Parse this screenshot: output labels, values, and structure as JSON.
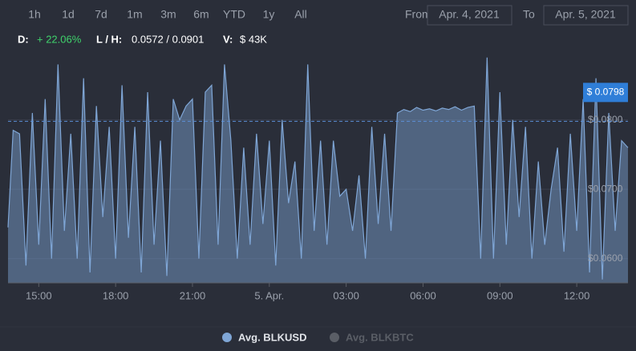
{
  "toolbar": {
    "range_buttons": [
      "1h",
      "1d",
      "7d",
      "1m",
      "3m",
      "6m",
      "YTD",
      "1y",
      "All"
    ],
    "from_label": "From",
    "from_date": "Apr. 4, 2021",
    "to_label": "To",
    "to_date": "Apr. 5, 2021",
    "change_label": "D:",
    "change": "+ 22.06%",
    "low_high_label": "L / H:",
    "low_high": "0.0572 / 0.0901",
    "volume_label": "V:",
    "volume": "$ 43K"
  },
  "chart_data": {
    "type": "area",
    "x": [
      13.8,
      14.0,
      14.25,
      14.5,
      14.75,
      15.0,
      15.25,
      15.5,
      15.75,
      16.0,
      16.25,
      16.5,
      16.75,
      17.0,
      17.25,
      17.5,
      17.75,
      18.0,
      18.25,
      18.5,
      18.75,
      19.0,
      19.25,
      19.5,
      19.75,
      20.0,
      20.25,
      20.5,
      20.75,
      21.0,
      21.25,
      21.5,
      21.75,
      22.0,
      22.25,
      22.5,
      22.75,
      23.0,
      23.25,
      23.5,
      23.75,
      24.0,
      24.25,
      24.5,
      24.75,
      25.0,
      25.25,
      25.5,
      25.75,
      26.0,
      26.25,
      26.5,
      26.75,
      27.0,
      27.25,
      27.5,
      27.75,
      28.0,
      28.25,
      28.5,
      28.75,
      29.0,
      29.25,
      29.5,
      29.75,
      30.0,
      30.25,
      30.5,
      30.75,
      31.0,
      31.25,
      31.5,
      31.75,
      32.0,
      32.25,
      32.5,
      32.75,
      33.0,
      33.25,
      33.5,
      33.75,
      34.0,
      34.25,
      34.5,
      34.75,
      35.0,
      35.25,
      35.5,
      35.75,
      36.0,
      36.25,
      36.5,
      36.75,
      37.0,
      37.25,
      37.5,
      37.75,
      38.0
    ],
    "series": [
      {
        "name": "Avg. BLKUSD",
        "color": "#7fa6d6",
        "values": [
          0.0645,
          0.0785,
          0.078,
          0.059,
          0.081,
          0.062,
          0.083,
          0.06,
          0.088,
          0.064,
          0.078,
          0.06,
          0.086,
          0.058,
          0.082,
          0.066,
          0.079,
          0.06,
          0.085,
          0.063,
          0.079,
          0.058,
          0.084,
          0.062,
          0.077,
          0.0575,
          0.083,
          0.08,
          0.082,
          0.083,
          0.06,
          0.084,
          0.085,
          0.062,
          0.088,
          0.077,
          0.06,
          0.076,
          0.062,
          0.078,
          0.065,
          0.077,
          0.059,
          0.08,
          0.068,
          0.074,
          0.06,
          0.088,
          0.064,
          0.077,
          0.062,
          0.077,
          0.069,
          0.07,
          0.064,
          0.072,
          0.06,
          0.079,
          0.065,
          0.078,
          0.064,
          0.081,
          0.0815,
          0.0812,
          0.0818,
          0.0814,
          0.0816,
          0.0813,
          0.0817,
          0.0815,
          0.0819,
          0.0814,
          0.0818,
          0.082,
          0.06,
          0.089,
          0.06,
          0.084,
          0.062,
          0.08,
          0.066,
          0.079,
          0.06,
          0.074,
          0.062,
          0.07,
          0.076,
          0.061,
          0.078,
          0.064,
          0.083,
          0.058,
          0.086,
          0.057,
          0.081,
          0.064,
          0.077,
          0.076
        ]
      }
    ],
    "hidden_series": [
      {
        "name": "Avg. BLKBTC",
        "color": "#5a5e66"
      }
    ],
    "current_value": 0.0798,
    "current_value_label": "$ 0.0798",
    "xlim": [
      13.8,
      38.0
    ],
    "xticks": [
      {
        "value": 15,
        "label": "15:00"
      },
      {
        "value": 18,
        "label": "18:00"
      },
      {
        "value": 21,
        "label": "21:00"
      },
      {
        "value": 24,
        "label": "5. Apr."
      },
      {
        "value": 27,
        "label": "03:00"
      },
      {
        "value": 30,
        "label": "06:00"
      },
      {
        "value": 33,
        "label": "09:00"
      },
      {
        "value": 36,
        "label": "12:00"
      }
    ],
    "ylim": [
      0.0565,
      0.0892
    ],
    "yticks": [
      {
        "value": 0.06,
        "label": "$0.0600"
      },
      {
        "value": 0.07,
        "label": "$0.0700"
      },
      {
        "value": 0.08,
        "label": "$0.0800"
      }
    ],
    "grid": true
  }
}
